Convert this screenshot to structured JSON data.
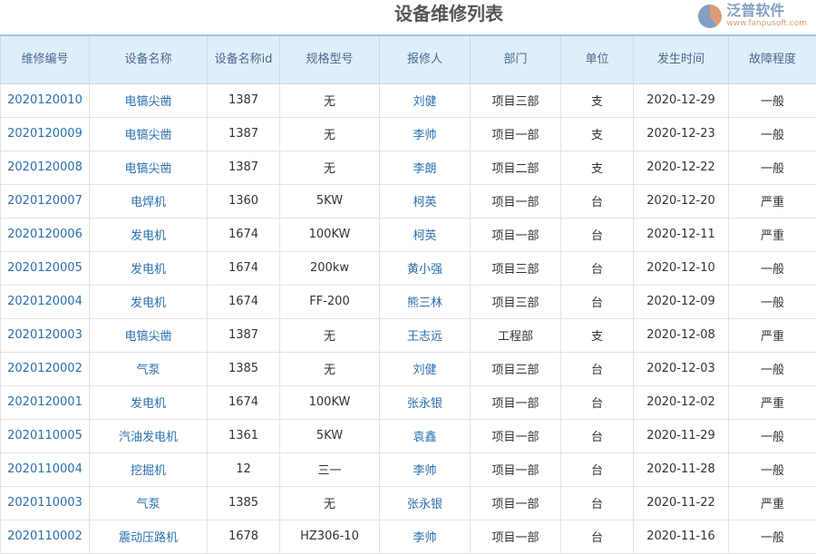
{
  "title": "设备维修列表",
  "headers": [
    "维修编号",
    "设备名称",
    "设备名称id",
    "规格型号",
    "报修人",
    "部门",
    "单位",
    "发生时间",
    "故障程度"
  ],
  "rows": [
    [
      "2020120010",
      "电镐尖凿",
      "1387",
      "无",
      "刘健",
      "项目三部",
      "支",
      "2020-12-29",
      "一般"
    ],
    [
      "2020120009",
      "电镐尖凿",
      "1387",
      "无",
      "李帅",
      "项目一部",
      "支",
      "2020-12-23",
      "一般"
    ],
    [
      "2020120008",
      "电镐尖凿",
      "1387",
      "无",
      "李朗",
      "项目二部",
      "支",
      "2020-12-22",
      "一般"
    ],
    [
      "2020120007",
      "电焊机",
      "1360",
      "5KW",
      "柯英",
      "项目一部",
      "台",
      "2020-12-20",
      "严重"
    ],
    [
      "2020120006",
      "发电机",
      "1674",
      "100KW",
      "柯英",
      "项目一部",
      "台",
      "2020-12-11",
      "严重"
    ],
    [
      "2020120005",
      "发电机",
      "1674",
      "200kw",
      "黄小强",
      "项目三部",
      "台",
      "2020-12-10",
      "一般"
    ],
    [
      "2020120004",
      "发电机",
      "1674",
      "FF-200",
      "熊三林",
      "项目三部",
      "台",
      "2020-12-09",
      "一般"
    ],
    [
      "2020120003",
      "电镐尖凿",
      "1387",
      "无",
      "王志远",
      "工程部",
      "支",
      "2020-12-08",
      "严重"
    ],
    [
      "2020120002",
      "气泵",
      "1385",
      "无",
      "刘健",
      "项目三部",
      "台",
      "2020-12-03",
      "一般"
    ],
    [
      "2020120001",
      "发电机",
      "1674",
      "100KW",
      "张永银",
      "项目一部",
      "台",
      "2020-12-02",
      "严重"
    ],
    [
      "2020110005",
      "汽油发电机",
      "1361",
      "5KW",
      "袁鑫",
      "项目一部",
      "台",
      "2020-11-29",
      "一般"
    ],
    [
      "2020110004",
      "挖掘机",
      "12",
      "三一",
      "李帅",
      "项目一部",
      "台",
      "2020-11-28",
      "一般"
    ],
    [
      "2020110003",
      "气泵",
      "1385",
      "无",
      "张永银",
      "项目一部",
      "台",
      "2020-11-22",
      "严重"
    ],
    [
      "2020110002",
      "震动压路机",
      "1678",
      "HZ306-10",
      "李帅",
      "项目一部",
      "台",
      "2020-11-16",
      "一般"
    ]
  ],
  "watermark": {
    "brand": "泛普软件",
    "url": "www.fanpusoft.com"
  },
  "colors": {
    "link": "#2a6fb0",
    "header_bg": "#dfeefb"
  }
}
